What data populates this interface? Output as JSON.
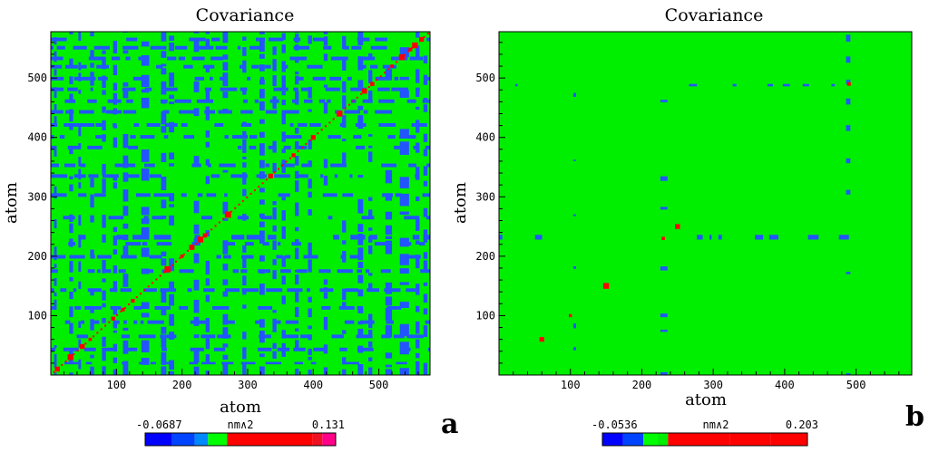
{
  "chart_data": [
    {
      "type": "heatmap",
      "panel_label": "a",
      "title": "Covariance",
      "xlabel": "atom",
      "ylabel": "atom",
      "xlim": [
        0,
        578
      ],
      "ylim": [
        0,
        578
      ],
      "xticks": [
        100,
        200,
        300,
        400,
        500
      ],
      "yticks": [
        100,
        200,
        300,
        400,
        500
      ],
      "background_color": "#00ee00",
      "colorbar": {
        "min_label": "-0.0687",
        "max_label": "0.131",
        "unit": "nm∧2",
        "min": -0.0687,
        "max": 0.131,
        "colors": [
          "#0000ff",
          "#0044ff",
          "#0088ff",
          "#00ff00",
          "#ff0000",
          "#ee1122",
          "#ff0088"
        ]
      },
      "negative_bands_x": [
        [
          5,
          9
        ],
        [
          28,
          34
        ],
        [
          42,
          46
        ],
        [
          60,
          66
        ],
        [
          78,
          84
        ],
        [
          95,
          101
        ],
        [
          110,
          118
        ],
        [
          138,
          150
        ],
        [
          168,
          176
        ],
        [
          180,
          188
        ],
        [
          218,
          226
        ],
        [
          236,
          242
        ],
        [
          262,
          270
        ],
        [
          292,
          298
        ],
        [
          318,
          326
        ],
        [
          338,
          344
        ],
        [
          352,
          358
        ],
        [
          372,
          378
        ],
        [
          392,
          398
        ],
        [
          416,
          422
        ],
        [
          444,
          450
        ],
        [
          468,
          476
        ],
        [
          484,
          490
        ],
        [
          510,
          520
        ],
        [
          532,
          546
        ],
        [
          556,
          562
        ],
        [
          568,
          574
        ]
      ],
      "negative_bands_y": [
        [
          18,
          22
        ],
        [
          40,
          46
        ],
        [
          62,
          68
        ],
        [
          86,
          92
        ],
        [
          110,
          116
        ],
        [
          140,
          146
        ],
        [
          172,
          178
        ],
        [
          196,
          202
        ],
        [
          218,
          224
        ],
        [
          228,
          236
        ],
        [
          262,
          268
        ],
        [
          300,
          306
        ],
        [
          332,
          338
        ],
        [
          350,
          356
        ],
        [
          380,
          386
        ],
        [
          398,
          404
        ],
        [
          418,
          424
        ],
        [
          440,
          446
        ],
        [
          458,
          464
        ],
        [
          478,
          484
        ],
        [
          496,
          502
        ],
        [
          516,
          522
        ],
        [
          530,
          536
        ],
        [
          548,
          554
        ],
        [
          562,
          568
        ]
      ],
      "diagonal_hotspots": [
        [
          10,
          10
        ],
        [
          30,
          30
        ],
        [
          48,
          48
        ],
        [
          60,
          60
        ],
        [
          95,
          95
        ],
        [
          110,
          110
        ],
        [
          125,
          125
        ],
        [
          178,
          178
        ],
        [
          200,
          200
        ],
        [
          215,
          215
        ],
        [
          228,
          228
        ],
        [
          235,
          235
        ],
        [
          270,
          270
        ],
        [
          335,
          335
        ],
        [
          370,
          370
        ],
        [
          400,
          400
        ],
        [
          440,
          440
        ],
        [
          478,
          478
        ],
        [
          490,
          490
        ],
        [
          520,
          520
        ],
        [
          535,
          535
        ],
        [
          548,
          548
        ],
        [
          555,
          555
        ],
        [
          565,
          565
        ]
      ]
    },
    {
      "type": "heatmap",
      "panel_label": "b",
      "title": "Covariance",
      "xlabel": "atom",
      "ylabel": "atom",
      "xlim": [
        0,
        578
      ],
      "ylim": [
        0,
        578
      ],
      "xticks": [
        100,
        200,
        300,
        400,
        500
      ],
      "yticks": [
        100,
        200,
        300,
        400,
        500
      ],
      "background_color": "#00ee00",
      "colorbar": {
        "min_label": "-0.0536",
        "max_label": "0.203",
        "unit": "nm∧2",
        "min": -0.0536,
        "max": 0.203,
        "colors": [
          "#0000ff",
          "#0044ff",
          "#00ff00",
          "#00ee00",
          "#ff0000",
          "#ff0000",
          "#ff0000"
        ]
      },
      "negative_bands_x": [
        [
          104,
          108
        ],
        [
          226,
          236
        ],
        [
          486,
          492
        ]
      ],
      "negative_bands_y": [
        [
          228,
          236
        ],
        [
          486,
          490
        ]
      ],
      "diagonal_hotspots": [
        [
          60,
          60
        ],
        [
          100,
          100
        ],
        [
          230,
          230
        ],
        [
          490,
          490
        ],
        [
          150,
          150
        ],
        [
          250,
          250
        ]
      ]
    }
  ]
}
